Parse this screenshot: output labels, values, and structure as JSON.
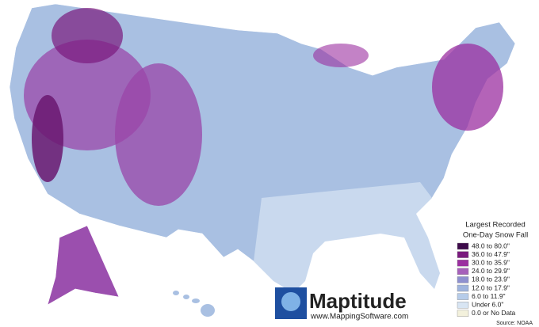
{
  "legend": {
    "title_lines": [
      "Largest Recorded",
      "One-Day Snow Fall"
    ],
    "items": [
      {
        "label": "48.0 to 80.0\"",
        "color": "#3d0a4a"
      },
      {
        "label": "36.0 to 47.9\"",
        "color": "#7a1a7e"
      },
      {
        "label": "30.0 to 35.9\"",
        "color": "#9b2fa0"
      },
      {
        "label": "24.0 to 29.9\"",
        "color": "#a660ba"
      },
      {
        "label": "18.0 to 23.9\"",
        "color": "#8e90cf"
      },
      {
        "label": "12.0 to 17.9\"",
        "color": "#9fb4de"
      },
      {
        "label": "6.0 to 11.9\"",
        "color": "#b6cce9"
      },
      {
        "label": "Under 6.0\"",
        "color": "#d8e5f3"
      },
      {
        "label": "0.0 or No Data",
        "color": "#f3f1dc"
      }
    ]
  },
  "logo": {
    "name": "Maptitude",
    "url": "www.MappingSoftware.com"
  },
  "source": "Source: NOAA"
}
